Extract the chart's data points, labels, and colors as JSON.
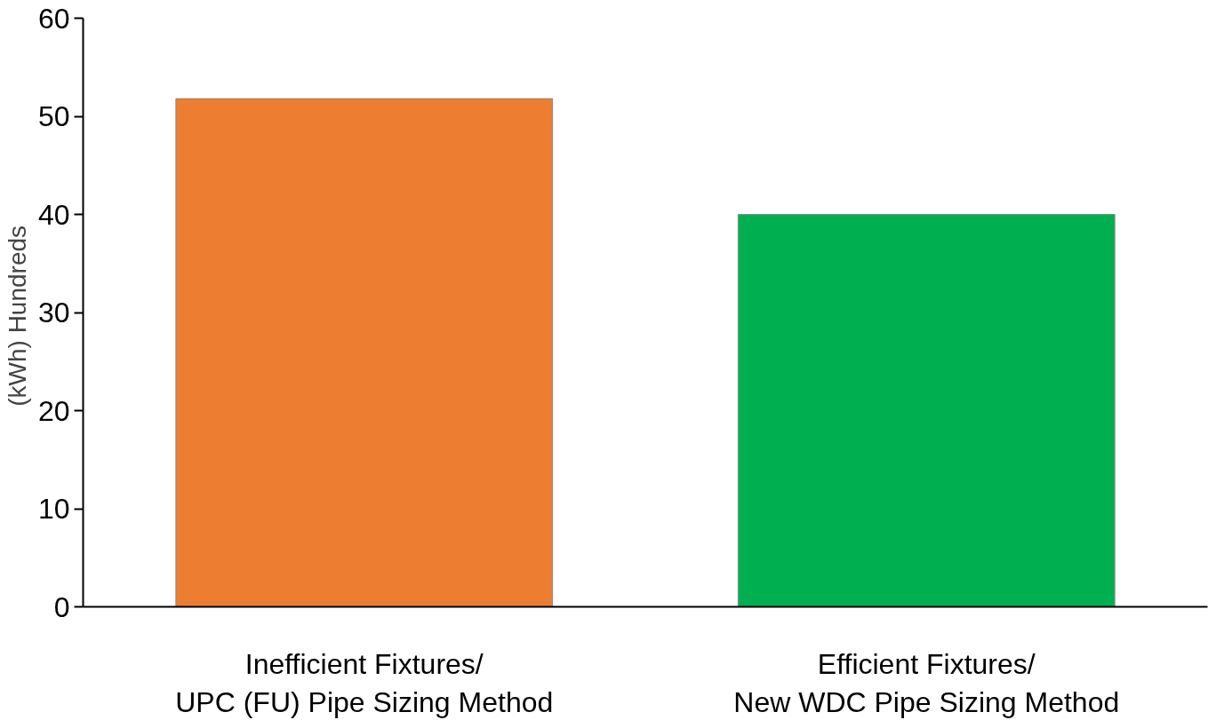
{
  "chart_data": {
    "type": "bar",
    "ylabel": "(kWh)  Hundreds",
    "categories": [
      "Inefficient Fixtures/\nUPC (FU) Pipe Sizing Method",
      "Efficient Fixtures/\nNew WDC Pipe Sizing Method"
    ],
    "values": [
      51.8,
      40
    ],
    "colors": [
      "#ed7d31",
      "#00b050"
    ],
    "ylim": [
      0,
      60
    ],
    "yticks": [
      0,
      10,
      20,
      30,
      40,
      50,
      60
    ],
    "grid": false
  }
}
